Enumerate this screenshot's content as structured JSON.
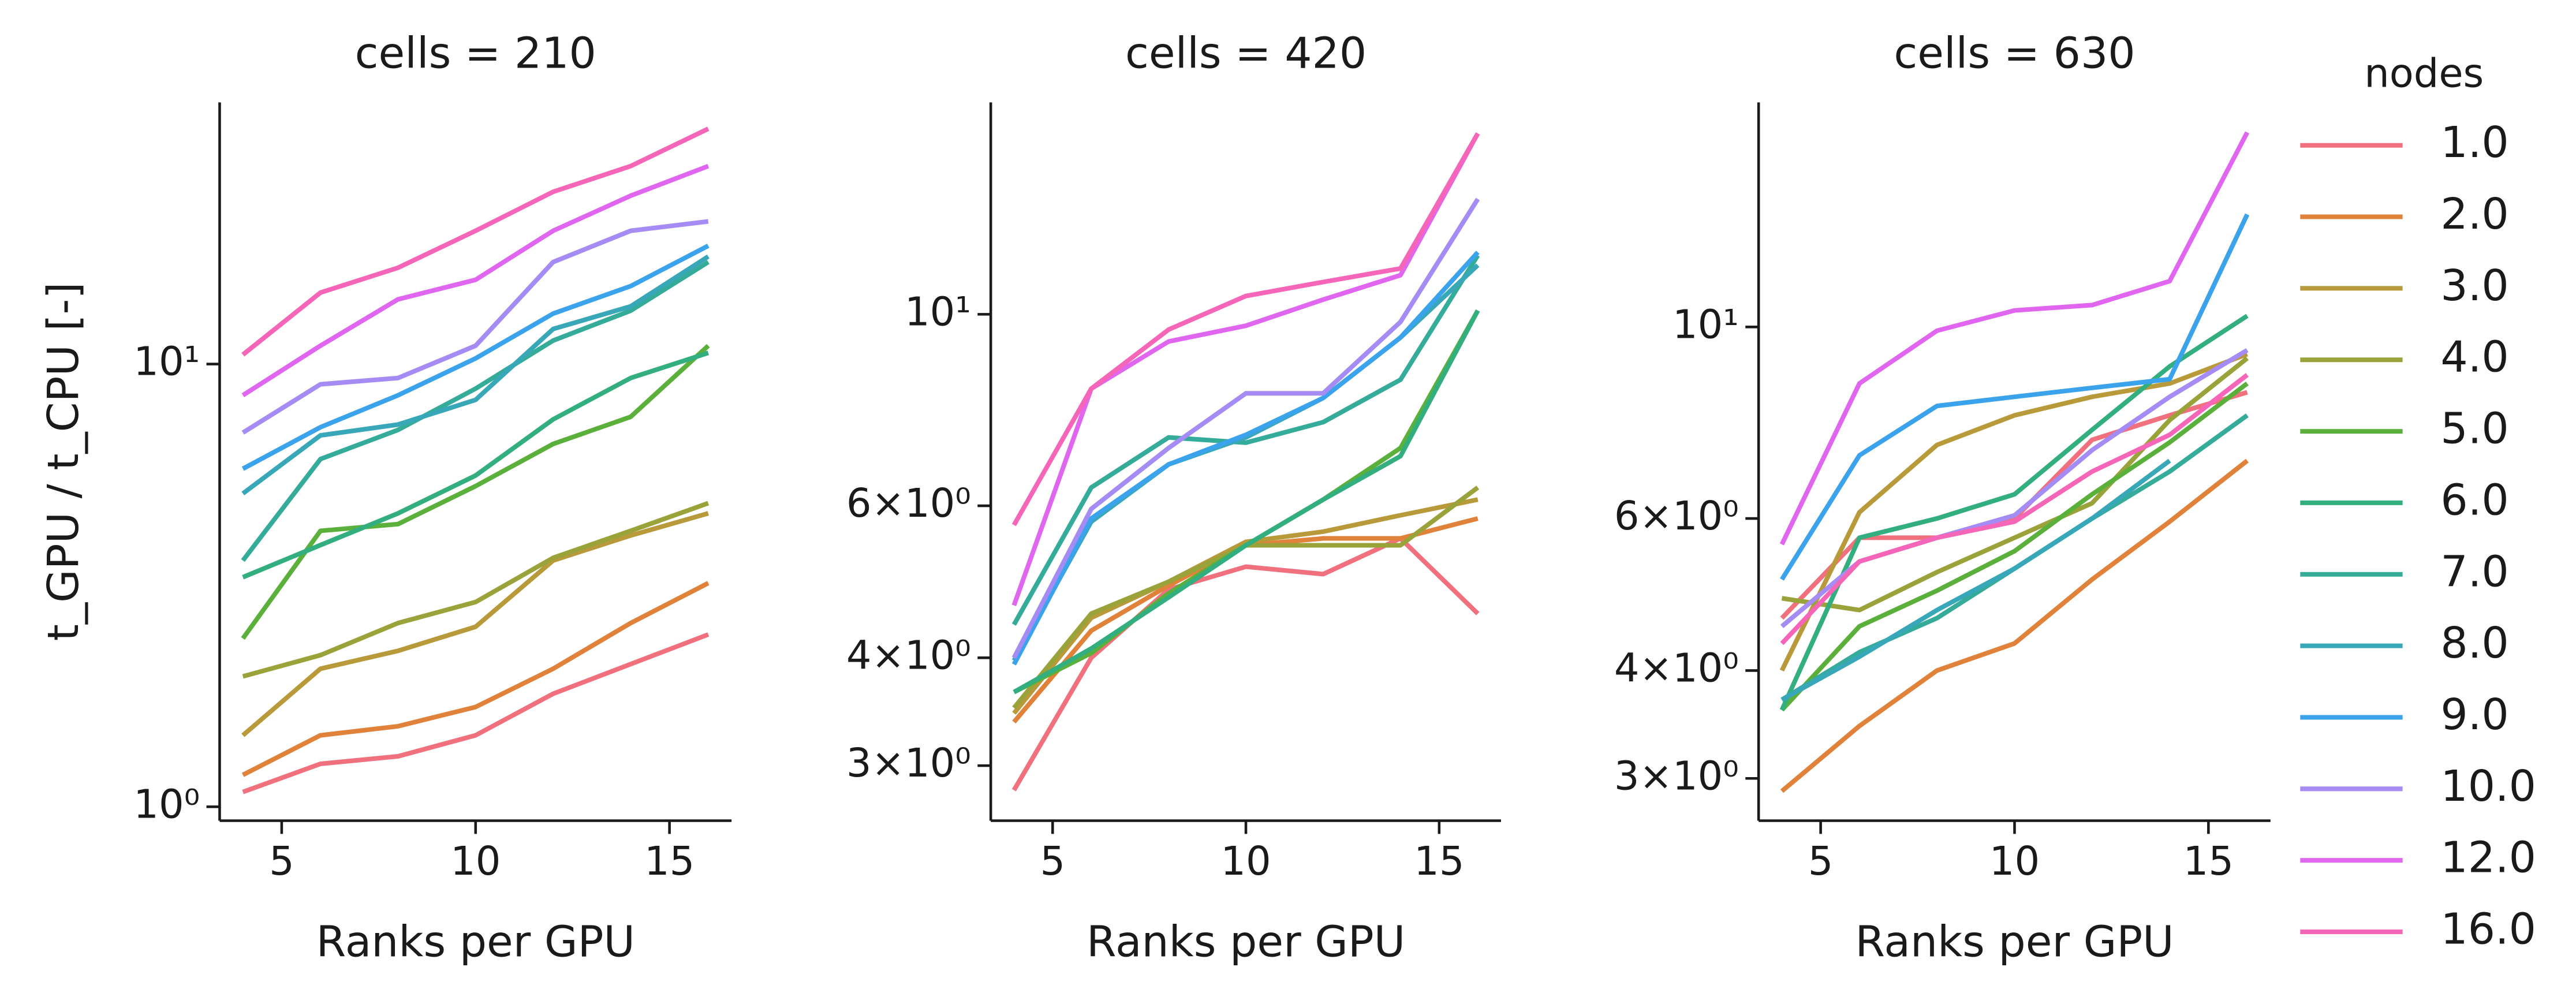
{
  "chart_data": [
    {
      "type": "line",
      "title": "cells = 210",
      "xlabel": "Ranks per GPU",
      "ylabel": "t_GPU / t_CPU [-]",
      "log_y": true,
      "legend_title": "nodes",
      "legend": "outside right",
      "x": [
        4,
        6,
        8,
        10,
        12,
        14,
        16
      ],
      "xlim": [
        3.4,
        16.6
      ],
      "xticks": [
        5,
        10,
        15
      ],
      "ylim": [
        0.93,
        39
      ],
      "yticks": [
        {
          "value": 1,
          "label": "10⁰"
        },
        {
          "value": 10,
          "label": "10¹"
        }
      ],
      "series": [
        {
          "name": "1.0",
          "color": "#f0707d",
          "values": [
            1.08,
            1.25,
            1.3,
            1.45,
            1.8,
            2.1,
            2.45
          ]
        },
        {
          "name": "2.0",
          "color": "#e0823a",
          "values": [
            1.18,
            1.45,
            1.52,
            1.68,
            2.05,
            2.6,
            3.2
          ]
        },
        {
          "name": "3.0",
          "color": "#b89a3a",
          "values": [
            1.45,
            2.05,
            2.25,
            2.55,
            3.6,
            4.1,
            4.6
          ]
        },
        {
          "name": "4.0",
          "color": "#9aa33a",
          "values": [
            1.97,
            2.2,
            2.6,
            2.9,
            3.65,
            4.2,
            4.85
          ]
        },
        {
          "name": "5.0",
          "color": "#5bb03b",
          "values": [
            2.4,
            4.2,
            4.35,
            5.3,
            6.6,
            7.6,
            11
          ]
        },
        {
          "name": "6.0",
          "color": "#33ae7e",
          "values": [
            3.3,
            3.9,
            4.6,
            5.6,
            7.5,
            9.3,
            10.6
          ]
        },
        {
          "name": "7.0",
          "color": "#35ab9a",
          "values": [
            3.6,
            6.1,
            7.1,
            8.8,
            11.3,
            13.2,
            17
          ]
        },
        {
          "name": "8.0",
          "color": "#38a8b9",
          "values": [
            5.1,
            6.9,
            7.3,
            8.3,
            12,
            13.5,
            17.5
          ]
        },
        {
          "name": "9.0",
          "color": "#3ba3ec",
          "values": [
            5.8,
            7.2,
            8.5,
            10.3,
            13,
            15,
            18.5
          ]
        },
        {
          "name": "10.0",
          "color": "#a48cf4",
          "values": [
            7,
            9,
            9.3,
            11,
            17,
            20,
            21
          ]
        },
        {
          "name": "12.0",
          "color": "#e066f0",
          "values": [
            8.5,
            11,
            14,
            15.5,
            20,
            24,
            28
          ]
        },
        {
          "name": "16.0",
          "color": "#f565b8",
          "values": [
            10.5,
            14.5,
            16.5,
            20,
            24.5,
            28,
            34
          ]
        }
      ]
    },
    {
      "type": "line",
      "title": "cells = 420",
      "xlabel": "Ranks per GPU",
      "log_y": true,
      "x": [
        4,
        6,
        8,
        10,
        12,
        14,
        16
      ],
      "xlim": [
        3.4,
        16.6
      ],
      "xticks": [
        5,
        10,
        15
      ],
      "ylim": [
        2.59,
        17.6
      ],
      "yticks": [
        {
          "value": 3,
          "label": "3×10⁰"
        },
        {
          "value": 4,
          "label": "4×10⁰"
        },
        {
          "value": 6,
          "label": "6×10⁰"
        },
        {
          "value": 10,
          "label": "10¹"
        }
      ],
      "series": [
        {
          "name": "1.0",
          "color": "#f0707d",
          "values": [
            2.81,
            4.0,
            4.8,
            5.1,
            5.0,
            5.5,
            4.5
          ]
        },
        {
          "name": "2.0",
          "color": "#e0823a",
          "values": [
            3.37,
            4.3,
            4.85,
            5.4,
            5.5,
            5.5,
            5.8
          ]
        },
        {
          "name": "3.0",
          "color": "#b89a3a",
          "values": [
            3.45,
            4.45,
            4.9,
            5.45,
            5.6,
            5.85,
            6.1
          ]
        },
        {
          "name": "4.0",
          "color": "#9aa33a",
          "values": [
            3.5,
            4.5,
            4.9,
            5.4,
            5.4,
            5.4,
            6.3
          ]
        },
        {
          "name": "5.0",
          "color": "#5bb03b",
          "values": [
            3.65,
            4.05,
            4.75,
            5.4,
            6.1,
            7.0,
            10.1
          ]
        },
        {
          "name": "6.0",
          "color": "#33ae7e",
          "values": [
            3.65,
            4.1,
            4.7,
            5.4,
            6.1,
            6.85,
            10.1
          ]
        },
        {
          "name": "7.0",
          "color": "#35ab9a",
          "values": [
            4.37,
            6.3,
            7.2,
            7.1,
            7.5,
            8.4,
            11.7
          ]
        },
        {
          "name": "8.0",
          "color": "#38a8b9",
          "values": [
            3.97,
            5.75,
            6.7,
            7.2,
            8.0,
            9.4,
            11.4
          ]
        },
        {
          "name": "9.0",
          "color": "#3ba3ec",
          "values": [
            3.93,
            5.8,
            6.7,
            7.25,
            8.0,
            9.4,
            11.8
          ]
        },
        {
          "name": "10.0",
          "color": "#a48cf4",
          "values": [
            4.0,
            5.95,
            7.0,
            8.1,
            8.1,
            9.8,
            13.6
          ]
        },
        {
          "name": "12.0",
          "color": "#e066f0",
          "values": [
            4.6,
            8.2,
            9.3,
            9.7,
            10.4,
            11.1,
            16.2
          ]
        },
        {
          "name": "16.0",
          "color": "#f565b8",
          "values": [
            5.7,
            8.2,
            9.6,
            10.5,
            10.9,
            11.3,
            16.2
          ]
        }
      ]
    },
    {
      "type": "line",
      "title": "cells = 630",
      "xlabel": "Ranks per GPU",
      "log_y": true,
      "x": [
        4,
        6,
        8,
        10,
        12,
        14,
        16
      ],
      "xlim": [
        3.4,
        16.6
      ],
      "xticks": [
        5,
        10,
        15
      ],
      "ylim": [
        2.68,
        18.2
      ],
      "yticks": [
        {
          "value": 3,
          "label": "3×10⁰"
        },
        {
          "value": 4,
          "label": "4×10⁰"
        },
        {
          "value": 6,
          "label": "6×10⁰"
        },
        {
          "value": 10,
          "label": "10¹"
        }
      ],
      "series": [
        {
          "name": "1.0",
          "color": "#f0707d",
          "values": [
            4.6,
            5.7,
            5.7,
            6.0,
            7.4,
            7.9,
            8.4
          ]
        },
        {
          "name": "2.0",
          "color": "#e0823a",
          "values": [
            2.9,
            3.45,
            4.0,
            4.3,
            5.1,
            5.95,
            7.0
          ]
        },
        {
          "name": "3.0",
          "color": "#b89a3a",
          "values": [
            4.0,
            6.1,
            7.3,
            7.9,
            8.3,
            8.6,
            9.3
          ]
        },
        {
          "name": "4.0",
          "color": "#9aa33a",
          "values": [
            4.85,
            4.7,
            5.2,
            5.7,
            6.25,
            7.8,
            9.2
          ]
        },
        {
          "name": "5.0",
          "color": "#5bb03b",
          "values": [
            3.6,
            4.5,
            4.95,
            5.5,
            6.4,
            7.35,
            8.6
          ]
        },
        {
          "name": "6.0",
          "color": "#33ae7e",
          "values": [
            3.6,
            5.7,
            6.0,
            6.4,
            7.6,
            9.0,
            10.3
          ]
        },
        {
          "name": "7.0",
          "color": "#35ab9a",
          "values": [
            3.7,
            4.2,
            4.6,
            5.25,
            6.0,
            6.8,
            7.9
          ]
        },
        {
          "name": "8.0",
          "color": "#38a8b9",
          "values": [
            3.7,
            4.15,
            4.7,
            5.25,
            6.0,
            7.0,
            null
          ]
        },
        {
          "name": "9.0",
          "color": "#3ba3ec",
          "values": [
            5.1,
            7.1,
            8.1,
            8.3,
            8.5,
            8.7,
            13.5
          ]
        },
        {
          "name": "10.0",
          "color": "#a48cf4",
          "values": [
            4.5,
            5.35,
            5.7,
            6.05,
            7.2,
            8.3,
            9.4
          ]
        },
        {
          "name": "12.0",
          "color": "#e066f0",
          "values": [
            5.6,
            8.6,
            9.9,
            10.45,
            10.6,
            11.3,
            16.8
          ]
        },
        {
          "name": "16.0",
          "color": "#f565b8",
          "values": [
            4.3,
            5.35,
            5.7,
            5.95,
            6.8,
            7.5,
            8.8
          ]
        }
      ]
    }
  ]
}
